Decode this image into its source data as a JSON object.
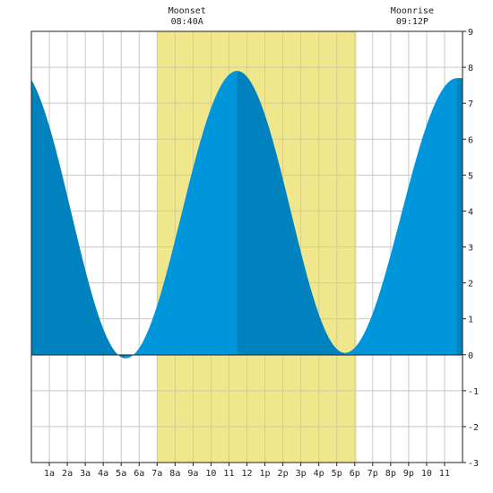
{
  "chart_data": {
    "type": "area",
    "title": "",
    "xlabel": "",
    "ylabel": "",
    "x_tick_labels": [
      "1a",
      "2a",
      "3a",
      "4a",
      "5a",
      "6a",
      "7a",
      "8a",
      "9a",
      "10",
      "11",
      "12",
      "1p",
      "2p",
      "3p",
      "4p",
      "5p",
      "6p",
      "7p",
      "8p",
      "9p",
      "10",
      "11"
    ],
    "y_tick_labels": [
      "-3",
      "-2",
      "-1",
      "0",
      "1",
      "2",
      "3",
      "4",
      "5",
      "6",
      "7",
      "8",
      "9"
    ],
    "xlim_hours": [
      0,
      24
    ],
    "ylim": [
      -3,
      9
    ],
    "grid": true,
    "daylight": {
      "start_hour": 7.0,
      "end_hour": 18.1
    },
    "moon_events": [
      {
        "name": "Moonset",
        "time": "08:40A",
        "hour": 8.667
      },
      {
        "name": "Moonrise",
        "time": "09:12P",
        "hour": 21.2
      }
    ],
    "tide_extrema": [
      {
        "hour": -0.8,
        "height": 8.0,
        "kind": "high"
      },
      {
        "hour": 5.25,
        "height": -0.1,
        "kind": "low"
      },
      {
        "hour": 11.45,
        "height": 7.9,
        "kind": "high"
      },
      {
        "hour": 17.45,
        "height": 0.05,
        "kind": "low"
      },
      {
        "hour": 23.7,
        "height": 7.7,
        "kind": "high"
      }
    ],
    "colors": {
      "rising_fill": "#0096dc",
      "falling_fill": "#0082be",
      "daylight": "#f0e68c",
      "grid": "#c8c8c8",
      "axis": "#222222"
    }
  }
}
